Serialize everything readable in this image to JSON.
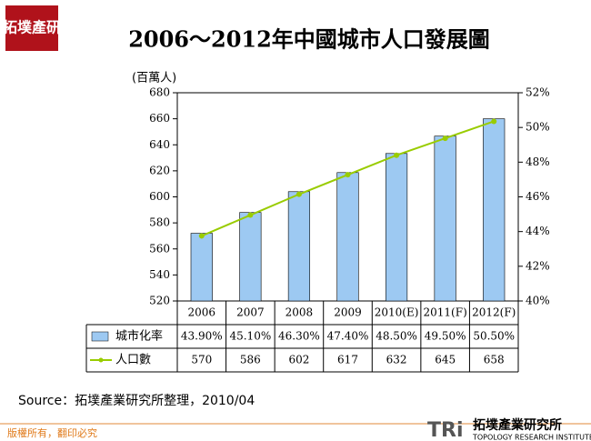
{
  "logo": {
    "text": "拓墣產研"
  },
  "chart_data": {
    "type": "bar-line",
    "title": "2006～2012年中國城市人口發展圖",
    "y_axis_label": "(百萬人)",
    "categories": [
      "2006",
      "2007",
      "2008",
      "2009",
      "2010(E)",
      "2011(F)",
      "2012(F)"
    ],
    "series": [
      {
        "name": "城市化率",
        "type": "bar",
        "axis": "y2",
        "color": "#9dc9f2",
        "values": [
          43.9,
          45.1,
          46.3,
          47.4,
          48.5,
          49.5,
          50.5
        ],
        "value_labels": [
          "43.90%",
          "45.10%",
          "46.30%",
          "47.40%",
          "48.50%",
          "49.50%",
          "50.50%"
        ]
      },
      {
        "name": "人口數",
        "type": "line",
        "axis": "y",
        "color": "#99cc00",
        "values": [
          570,
          586,
          602,
          617,
          632,
          645,
          658
        ]
      }
    ],
    "ylim": [
      520,
      680
    ],
    "yticks": [
      520,
      540,
      560,
      580,
      600,
      620,
      640,
      660,
      680
    ],
    "y2lim": [
      40,
      52
    ],
    "y2ticks": [
      {
        "value": 40,
        "label": "40%"
      },
      {
        "value": 42,
        "label": "42%"
      },
      {
        "value": 44,
        "label": "44%"
      },
      {
        "value": 46,
        "label": "46%"
      },
      {
        "value": 48,
        "label": "48%"
      },
      {
        "value": 50,
        "label": "50%"
      },
      {
        "value": 52,
        "label": "52%"
      }
    ],
    "grid": false
  },
  "source": "Source：拓墣產業研究所整理，2010/04",
  "footer": {
    "copyright": "版權所有，翻印必究",
    "company": "拓墣產業研究所",
    "company_en": "TOPOLOGY RESEARCH INSTITUTE"
  }
}
